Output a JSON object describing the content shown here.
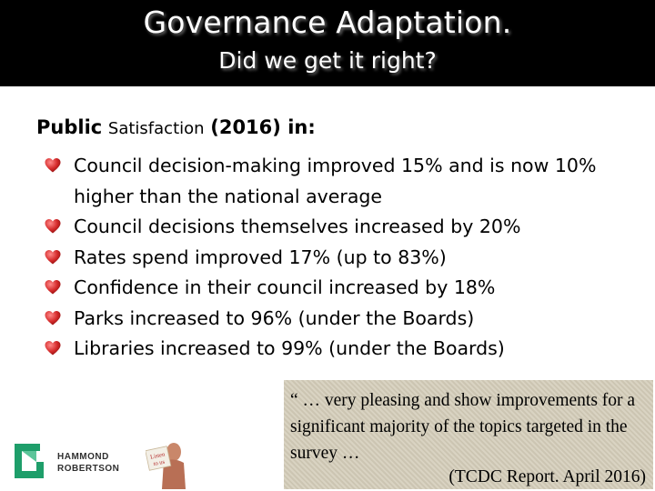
{
  "header": {
    "title": "Governance Adaptation.",
    "subtitle": "Did we get it right?"
  },
  "content": {
    "heading_part1": "Public",
    "heading_part2": "Satisfaction",
    "heading_part3": "(2016) in:",
    "bullet_icon": "heart-icon",
    "bullet_color": "#d42a2a",
    "bullets": [
      "Council decision-making improved 15% and is now 10% higher than the national average",
      "Council decisions themselves increased by 20%",
      "Rates spend improved 17% (up to 83%)",
      "Confidence in their council increased by 18%",
      "Parks increased to 96% (under the Boards)",
      "Libraries increased to 99% (under the Boards)"
    ]
  },
  "quote": {
    "text": "“ … very pleasing and show improvements for a significant majority of the topics targeted in the survey …",
    "source": "(TCDC Report. April 2016)"
  },
  "logo": {
    "line1": "HAMMOND",
    "line2": "ROBERTSON",
    "accent": "#1e9e6a"
  },
  "figure": {
    "sign_text": "Listen to us"
  }
}
